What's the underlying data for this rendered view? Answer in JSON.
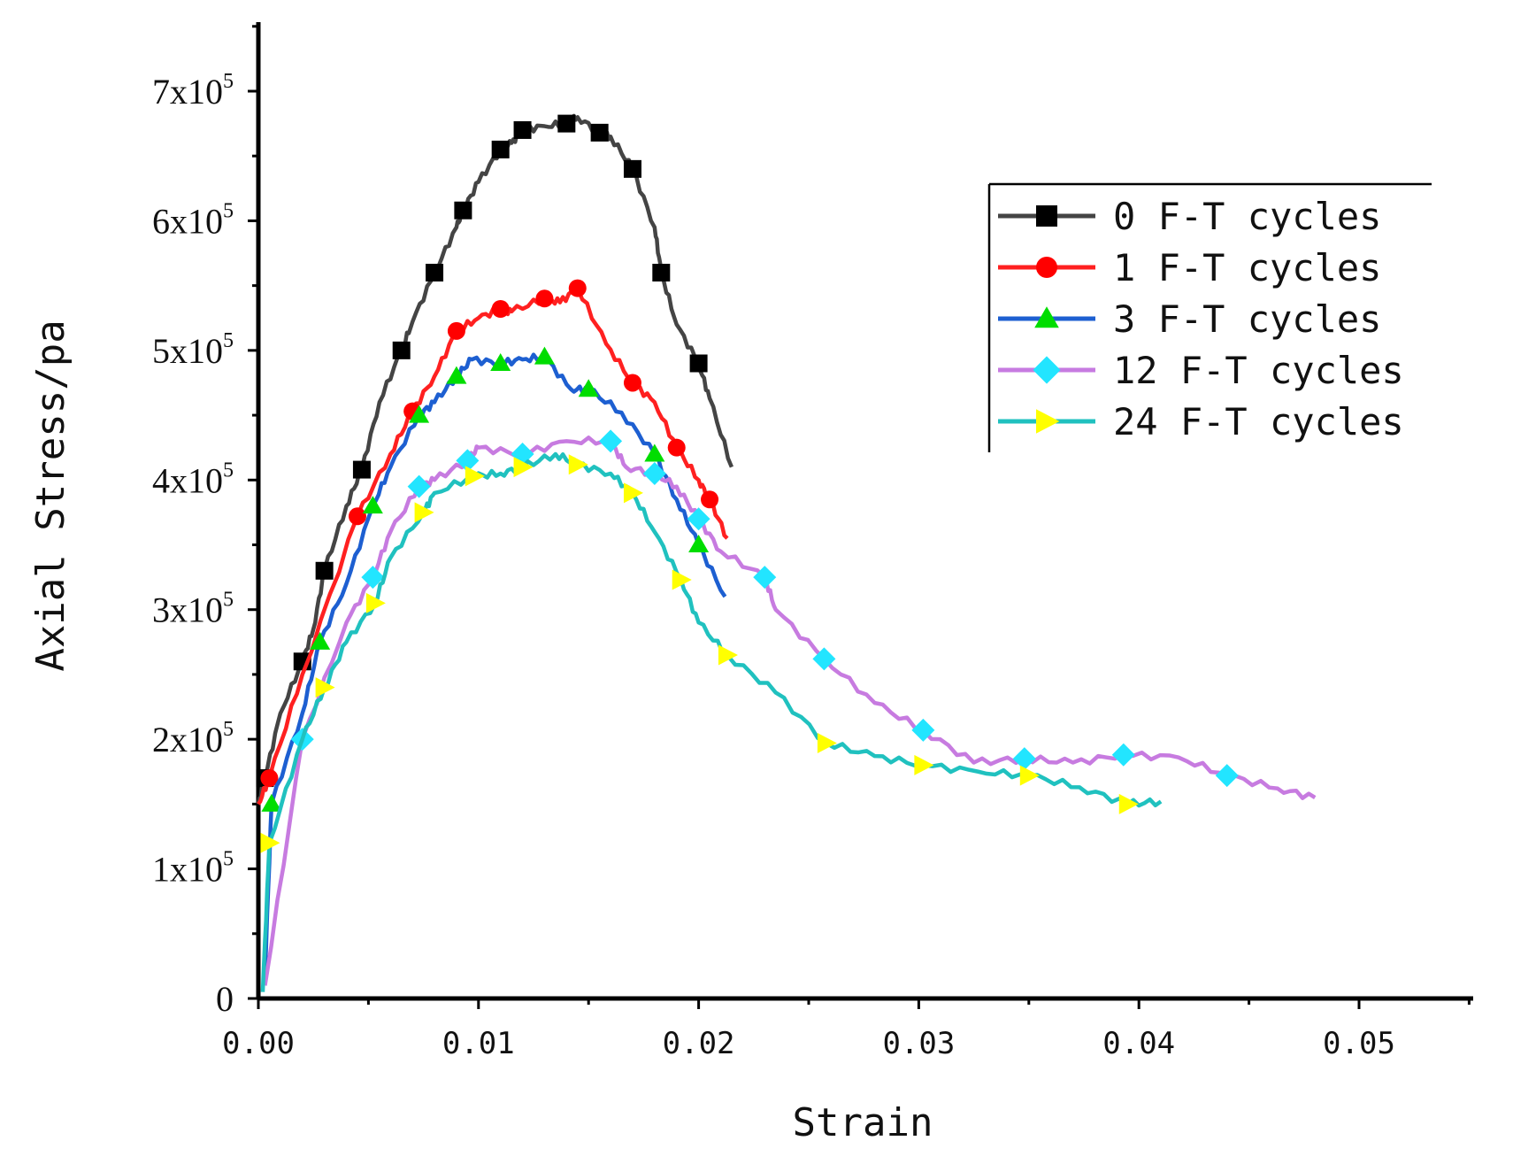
{
  "chart_data": {
    "type": "line",
    "title": "",
    "xlabel": "Strain",
    "ylabel": "Axial Stress/pa",
    "xlim": [
      0,
      0.055
    ],
    "ylim": [
      0,
      750000
    ],
    "x_ticks": [
      0,
      0.01,
      0.02,
      0.03,
      0.04,
      0.05
    ],
    "x_tick_labels": [
      "0.00",
      "0.01",
      "0.02",
      "0.03",
      "0.04",
      "0.05"
    ],
    "y_ticks": [
      0,
      100000,
      200000,
      300000,
      400000,
      500000,
      600000,
      700000
    ],
    "y_tick_labels": [
      {
        "base": "0",
        "exp": ""
      },
      {
        "base": "1x10",
        "exp": "5"
      },
      {
        "base": "2x10",
        "exp": "5"
      },
      {
        "base": "3x10",
        "exp": "5"
      },
      {
        "base": "4x10",
        "exp": "5"
      },
      {
        "base": "5x10",
        "exp": "5"
      },
      {
        "base": "6x10",
        "exp": "5"
      },
      {
        "base": "7x10",
        "exp": "5"
      }
    ],
    "legend_position": "top-right",
    "series": [
      {
        "name": "0 F-T cycles",
        "color": "#444444",
        "marker": "square",
        "marker_color": "#000000",
        "x": [
          0,
          0.0003,
          0.001,
          0.002,
          0.0025,
          0.003,
          0.004,
          0.0047,
          0.0055,
          0.0065,
          0.007,
          0.008,
          0.009,
          0.0093,
          0.01,
          0.011,
          0.0115,
          0.012,
          0.013,
          0.014,
          0.0145,
          0.0155,
          0.016,
          0.017,
          0.018,
          0.0183,
          0.019,
          0.02,
          0.0205,
          0.0215
        ],
        "y": [
          150000,
          170000,
          220000,
          260000,
          285000,
          330000,
          380000,
          408000,
          460000,
          500000,
          522000,
          560000,
          595000,
          608000,
          630000,
          655000,
          660000,
          670000,
          673000,
          675000,
          680000,
          668000,
          665000,
          640000,
          595000,
          560000,
          520000,
          490000,
          463000,
          410000
        ]
      },
      {
        "name": "1 F-T cycles",
        "color": "#ff2020",
        "marker": "circle",
        "marker_color": "#ff0000",
        "x": [
          0,
          0.0005,
          0.002,
          0.0045,
          0.006,
          0.007,
          0.008,
          0.009,
          0.01,
          0.011,
          0.0115,
          0.013,
          0.0137,
          0.0145,
          0.0158,
          0.017,
          0.018,
          0.019,
          0.02,
          0.0205,
          0.0213
        ],
        "y": [
          150000,
          170000,
          250000,
          372000,
          420000,
          453000,
          480000,
          515000,
          525000,
          532000,
          530000,
          540000,
          537000,
          548000,
          505000,
          475000,
          460000,
          425000,
          400000,
          385000,
          355000
        ]
      },
      {
        "name": "3 F-T cycles",
        "color": "#1d5fd1",
        "marker": "triangle-up",
        "marker_color": "#00dd00",
        "x": [
          0.0003,
          0.0006,
          0.002,
          0.0028,
          0.004,
          0.0052,
          0.006,
          0.0073,
          0.008,
          0.009,
          0.0097,
          0.011,
          0.012,
          0.013,
          0.0142,
          0.015,
          0.0165,
          0.018,
          0.019,
          0.02,
          0.0212
        ],
        "y": [
          20000,
          150000,
          220000,
          275000,
          320000,
          380000,
          410000,
          450000,
          460000,
          480000,
          493000,
          490000,
          493000,
          495000,
          470000,
          470000,
          452000,
          420000,
          385000,
          350000,
          310000
        ]
      },
      {
        "name": "12 F-T cycles",
        "color": "#c77be0",
        "marker": "diamond",
        "marker_color": "#22e5ff",
        "x": [
          0.0003,
          0.002,
          0.004,
          0.0052,
          0.006,
          0.0073,
          0.008,
          0.0095,
          0.01,
          0.012,
          0.014,
          0.016,
          0.0167,
          0.018,
          0.019,
          0.02,
          0.021,
          0.023,
          0.0235,
          0.0257,
          0.028,
          0.0302,
          0.0325,
          0.0348,
          0.037,
          0.0393,
          0.0418,
          0.044,
          0.0463,
          0.048
        ],
        "y": [
          10000,
          200000,
          290000,
          325000,
          360000,
          395000,
          400000,
          415000,
          425000,
          420000,
          430000,
          430000,
          410000,
          405000,
          395000,
          370000,
          345000,
          325000,
          300000,
          262000,
          228000,
          207000,
          182000,
          185000,
          182000,
          188000,
          186000,
          172000,
          162000,
          155000
        ]
      },
      {
        "name": "24 F-T cycles",
        "color": "#20c1bf",
        "marker": "triangle-right",
        "marker_color": "#ffff00",
        "x": [
          0.0002,
          0.0005,
          0.002,
          0.003,
          0.004,
          0.0053,
          0.006,
          0.0075,
          0.008,
          0.0098,
          0.011,
          0.012,
          0.0135,
          0.0145,
          0.016,
          0.017,
          0.018,
          0.0192,
          0.02,
          0.0213,
          0.0235,
          0.0258,
          0.028,
          0.0302,
          0.0327,
          0.035,
          0.0373,
          0.0395,
          0.041
        ],
        "y": [
          5000,
          120000,
          200000,
          240000,
          275000,
          305000,
          340000,
          375000,
          390000,
          403000,
          405000,
          410000,
          420000,
          412000,
          405000,
          390000,
          360000,
          323000,
          290000,
          265000,
          236000,
          197000,
          187000,
          180000,
          175000,
          172000,
          163000,
          150000,
          152000
        ]
      }
    ]
  }
}
